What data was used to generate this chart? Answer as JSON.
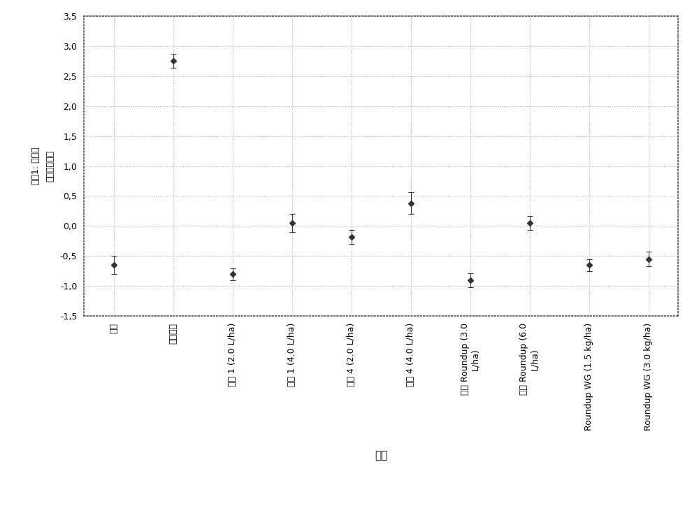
{
  "categories": [
    "对照",
    "杂草控制",
    "样本 1 (2.0 L/ha)",
    "样本 1 (4.0 L/ha)",
    "样本 4 (2.0 L/ha)",
    "样本 4 (4.0 L/ha)",
    "初代 Roundup (3.0\nL/ha)",
    "初代 Roundup (6.0\nL/ha)",
    "Roundup WG (1.5 kg/ha)",
    "Roundup WG (3.0 kg/ha)"
  ],
  "means": [
    -0.65,
    2.75,
    -0.8,
    0.05,
    -0.18,
    0.38,
    -0.9,
    0.05,
    -0.65,
    -0.55
  ],
  "errors": [
    0.15,
    0.12,
    0.1,
    0.15,
    0.12,
    0.18,
    0.12,
    0.12,
    0.1,
    0.12
  ],
  "ylabel_line1": "要剁1: 饭包草",
  "ylabel_line2": "（控制评分）",
  "xlabel": "处理",
  "ylim": [
    -1.5,
    3.5
  ],
  "yticks": [
    -1.5,
    -1.0,
    -0.5,
    0.0,
    0.5,
    1.0,
    1.5,
    2.0,
    2.5,
    3.0,
    3.5
  ],
  "ytick_labels": [
    "-1,5",
    "-1,0",
    "-0,5",
    "0,0",
    "0,5",
    "1,0",
    "1,5",
    "2,0",
    "2,5",
    "3,0",
    "3,5"
  ],
  "marker": "D",
  "marker_size": 4,
  "line_color": "#333333",
  "background_color": "#ffffff",
  "grid_color": "#aaaaaa",
  "axis_fontsize": 9,
  "tick_fontsize": 9,
  "xlabel_fontsize": 11
}
